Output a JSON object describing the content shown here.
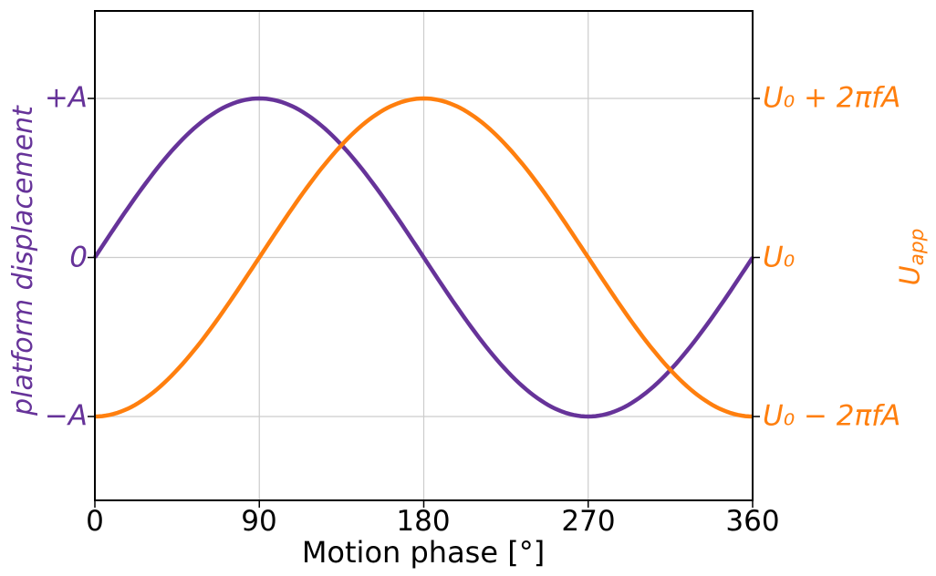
{
  "chart_data": {
    "type": "line",
    "title": "",
    "xlabel": "Motion phase [°]",
    "xlim": [
      0,
      360
    ],
    "x_ticks": [
      0,
      90,
      180,
      270,
      360
    ],
    "x_tick_labels": [
      "0",
      "90",
      "180",
      "270",
      "360"
    ],
    "grid": true,
    "ylim_units_of_A": [
      -1.55,
      1.55
    ],
    "left_axis": {
      "label": "platform displacement",
      "color": "#663399",
      "tick_labels": [
        "+A",
        "0",
        "−A"
      ],
      "tick_values": [
        1,
        0,
        -1
      ]
    },
    "right_axis": {
      "label_main": "U",
      "label_sub": "app",
      "color": "#ff7f0e",
      "tick_labels": [
        "U₀ + 2πfA",
        "U₀",
        "U₀ − 2πfA"
      ],
      "tick_values": [
        1,
        0,
        -1
      ]
    },
    "series": [
      {
        "name": "platform-displacement",
        "axis": "left",
        "color": "#663399",
        "shape": "sin",
        "formula": "A·sin(phase)",
        "key_points_deg": [
          0,
          90,
          180,
          270,
          360
        ],
        "key_values_units_of_A": [
          0,
          1,
          0,
          -1,
          0
        ]
      },
      {
        "name": "applied-voltage-U-app",
        "axis": "right",
        "color": "#ff7f0e",
        "shape": "neg_cos",
        "formula": "U₀ − 2πfA·cos(phase)",
        "key_points_deg": [
          0,
          90,
          180,
          270,
          360
        ],
        "key_values_units_of_A": [
          -1,
          0,
          1,
          0,
          -1
        ]
      }
    ],
    "style": {
      "grid_color": "#cccccc",
      "spine_color": "#000000",
      "tick_color": "#000000",
      "text_color": "#000000",
      "line_width": 4.5
    }
  }
}
